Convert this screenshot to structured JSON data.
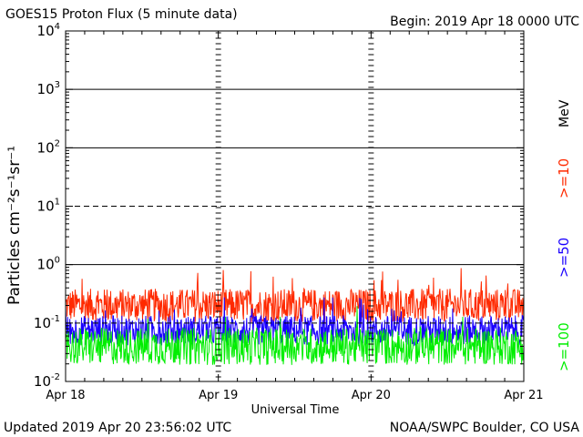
{
  "header": {
    "title": "GOES15 Proton Flux (5 minute data)",
    "begin": "Begin: 2019 Apr 18 0000 UTC"
  },
  "footer": {
    "updated": "Updated 2019 Apr 20 23:56:02 UTC",
    "source": "NOAA/SWPC Boulder, CO USA"
  },
  "chart_data": {
    "type": "line",
    "xlabel": "Universal Time",
    "ylabel": "Particles cm⁻²s⁻¹sr⁻¹",
    "y_scale": "log",
    "ylim": [
      0.01,
      10000
    ],
    "y_ticks": [
      {
        "value": 10000,
        "base": "10",
        "exp": "4"
      },
      {
        "value": 1000,
        "base": "10",
        "exp": "3"
      },
      {
        "value": 100,
        "base": "10",
        "exp": "2"
      },
      {
        "value": 10,
        "base": "10",
        "exp": "1"
      },
      {
        "value": 1,
        "base": "10",
        "exp": "0"
      },
      {
        "value": 0.1,
        "base": "10",
        "exp": "-1"
      },
      {
        "value": 0.01,
        "base": "10",
        "exp": "-2"
      }
    ],
    "x_ticks": [
      "Apr 18",
      "Apr 19",
      "Apr 20",
      "Apr 21"
    ],
    "xlim": [
      "2019-04-18 00:00",
      "2019-04-21 00:00"
    ],
    "legend_unit": "MeV",
    "series": [
      {
        "name": ">=10",
        "color": "#ff2a00",
        "baseline": 0.2,
        "spread": 0.18
      },
      {
        "name": ">=50",
        "color": "#1a00ff",
        "baseline": 0.075,
        "spread": 0.16
      },
      {
        "name": ">=100",
        "color": "#00ee00",
        "baseline": 0.04,
        "spread": 0.2
      }
    ],
    "threshold_lines": [
      {
        "value": 1000,
        "style": "solid"
      },
      {
        "value": 100,
        "style": "solid"
      },
      {
        "value": 10,
        "style": "dashed"
      },
      {
        "value": 1,
        "style": "solid"
      },
      {
        "value": 0.1,
        "style": "dashed"
      }
    ],
    "legend_placement": "right-vertical"
  }
}
